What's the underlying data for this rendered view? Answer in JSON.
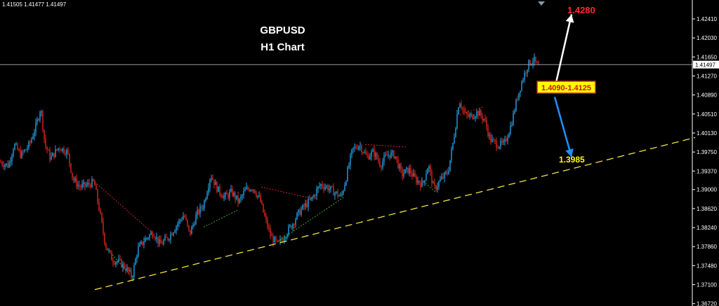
{
  "ohlc_readout": "1.41505 1.41477 1.41497",
  "chart_data": {
    "type": "candlestick",
    "title": "GBPUSD",
    "subtitle": "H1 Chart",
    "ylim": [
      1.3672,
      1.428
    ],
    "ytick_labels": [
      "1.42410",
      "1.42030",
      "1.41650",
      "1.41270",
      "1.40890",
      "1.40510",
      "1.40130",
      "1.39750",
      "1.39370",
      "1.39000",
      "1.38620",
      "1.38240",
      "1.37860",
      "1.37480",
      "1.37100",
      "1.36720"
    ],
    "current_price": 1.41497,
    "current_price_label": "1.41497",
    "price_path": [
      [
        0,
        1.3955
      ],
      [
        12,
        1.3948
      ],
      [
        20,
        1.399
      ],
      [
        30,
        1.3968
      ],
      [
        42,
        1.399
      ],
      [
        52,
        1.403
      ],
      [
        58,
        1.4065
      ],
      [
        64,
        1.399
      ],
      [
        72,
        1.3962
      ],
      [
        84,
        1.3985
      ],
      [
        96,
        1.3975
      ],
      [
        104,
        1.392
      ],
      [
        114,
        1.3905
      ],
      [
        126,
        1.391
      ],
      [
        134,
        1.3915
      ],
      [
        142,
        1.3855
      ],
      [
        150,
        1.379
      ],
      [
        160,
        1.376
      ],
      [
        170,
        1.3755
      ],
      [
        180,
        1.3742
      ],
      [
        188,
        1.3725
      ],
      [
        196,
        1.378
      ],
      [
        206,
        1.38
      ],
      [
        218,
        1.3815
      ],
      [
        228,
        1.379
      ],
      [
        240,
        1.3805
      ],
      [
        252,
        1.383
      ],
      [
        262,
        1.385
      ],
      [
        270,
        1.381
      ],
      [
        280,
        1.385
      ],
      [
        290,
        1.387
      ],
      [
        300,
        1.393
      ],
      [
        310,
        1.39
      ],
      [
        320,
        1.3885
      ],
      [
        330,
        1.3895
      ],
      [
        340,
        1.3875
      ],
      [
        350,
        1.39
      ],
      [
        360,
        1.3905
      ],
      [
        370,
        1.388
      ],
      [
        378,
        1.384
      ],
      [
        386,
        1.3805
      ],
      [
        396,
        1.379
      ],
      [
        406,
        1.381
      ],
      [
        416,
        1.383
      ],
      [
        426,
        1.3855
      ],
      [
        436,
        1.387
      ],
      [
        446,
        1.3885
      ],
      [
        456,
        1.391
      ],
      [
        466,
        1.3905
      ],
      [
        476,
        1.3895
      ],
      [
        486,
        1.3885
      ],
      [
        494,
        1.393
      ],
      [
        502,
        1.398
      ],
      [
        512,
        1.399
      ],
      [
        522,
        1.3965
      ],
      [
        532,
        1.3975
      ],
      [
        542,
        1.395
      ],
      [
        552,
        1.397
      ],
      [
        562,
        1.397
      ],
      [
        572,
        1.393
      ],
      [
        582,
        1.394
      ],
      [
        592,
        1.392
      ],
      [
        602,
        1.391
      ],
      [
        610,
        1.395
      ],
      [
        618,
        1.39
      ],
      [
        628,
        1.392
      ],
      [
        638,
        1.3935
      ],
      [
        646,
        1.4
      ],
      [
        654,
        1.408
      ],
      [
        662,
        1.405
      ],
      [
        670,
        1.4045
      ],
      [
        680,
        1.4055
      ],
      [
        690,
        1.404
      ],
      [
        698,
        1.4
      ],
      [
        708,
        1.399
      ],
      [
        718,
        1.399
      ],
      [
        728,
        1.403
      ],
      [
        736,
        1.408
      ],
      [
        744,
        1.412
      ],
      [
        752,
        1.415
      ],
      [
        760,
        1.416
      ],
      [
        766,
        1.4145
      ],
      [
        770,
        1.4145
      ]
    ],
    "wave_lines_red": [
      [
        [
          135,
          1.3915
        ],
        [
          220,
          1.381
        ]
      ],
      [
        [
          372,
          1.3905
        ],
        [
          452,
          1.388
        ]
      ],
      [
        [
          520,
          1.399
        ],
        [
          578,
          1.3985
        ]
      ],
      [
        [
          655,
          1.405
        ],
        [
          688,
          1.4065
        ]
      ]
    ],
    "wave_lines_green": [
      [
        [
          160,
          1.377
        ],
        [
          190,
          1.3722
        ]
      ],
      [
        [
          290,
          1.3825
        ],
        [
          340,
          1.386
        ]
      ],
      [
        [
          395,
          1.3795
        ],
        [
          490,
          1.3885
        ]
      ],
      [
        [
          600,
          1.392
        ],
        [
          620,
          1.3895
        ]
      ]
    ],
    "trendline": {
      "x": [
        135,
        990
      ],
      "y": [
        1.37,
        1.4004
      ],
      "color": "#f2e341"
    },
    "bullish_arrow": {
      "from": [
        790,
        1.4102
      ],
      "to": [
        814,
        1.425
      ],
      "color": "#ffffff"
    },
    "bearish_arrow": {
      "from": [
        790,
        1.4085
      ],
      "to": [
        814,
        1.3965
      ],
      "color": "#1e90ff"
    },
    "annotations": {
      "target_high": "1.4280",
      "resistance_zone": "1.4090-1.4125",
      "target_low": "1.3985"
    },
    "colors": {
      "bull": "#26a2e8",
      "bear": "#e2261d",
      "axis": "#ffffff",
      "grid": "none"
    },
    "grid": false
  }
}
